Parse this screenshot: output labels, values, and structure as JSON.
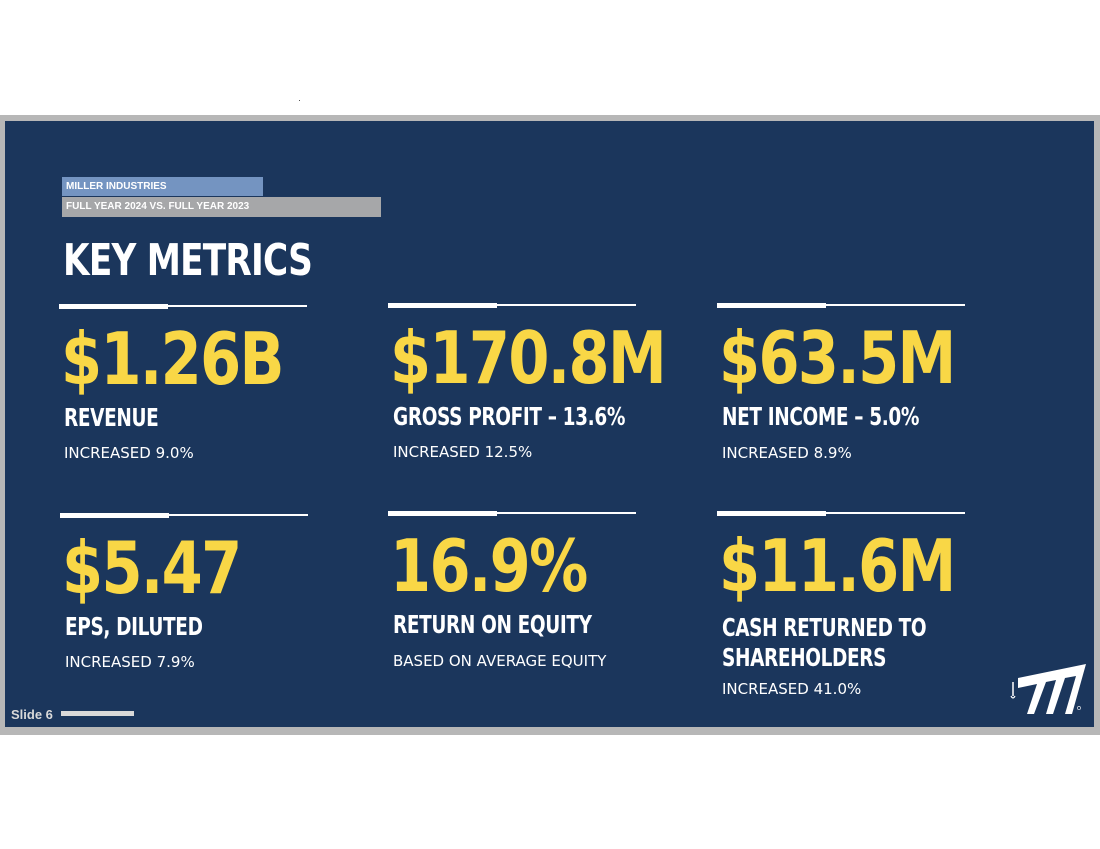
{
  "slide": {
    "company": "MILLER INDUSTRIES",
    "period": "FULL YEAR 2024 VS. FULL YEAR 2023",
    "title": "KEY METRICS",
    "slide_number": "Slide 6"
  },
  "metrics": [
    {
      "value": "$1.26B",
      "label": "REVENUE",
      "sub": "INCREASED 9.0%"
    },
    {
      "value": "$170.8M",
      "label": "GROSS PROFIT – 13.6%",
      "sub": "INCREASED 12.5%"
    },
    {
      "value": "$63.5M",
      "label": "NET INCOME – 5.0%",
      "sub": "INCREASED 8.9%"
    },
    {
      "value": "$5.47",
      "label": "EPS, DILUTED",
      "sub": "INCREASED 7.9%"
    },
    {
      "value": "16.9%",
      "label": "RETURN ON EQUITY",
      "sub": "BASED ON AVERAGE EQUITY"
    },
    {
      "value": "$11.6M",
      "label_line1": "CASH RETURNED TO",
      "label_line2": "SHAREHOLDERS",
      "sub": "INCREASED 41.0%"
    }
  ],
  "colors": {
    "background": "#1b365c",
    "value": "#f9d746",
    "company_tag": "#7494c1",
    "period_tag": "#a6a7a9"
  },
  "logo": {
    "icon": "miller-industries-logo-icon"
  }
}
